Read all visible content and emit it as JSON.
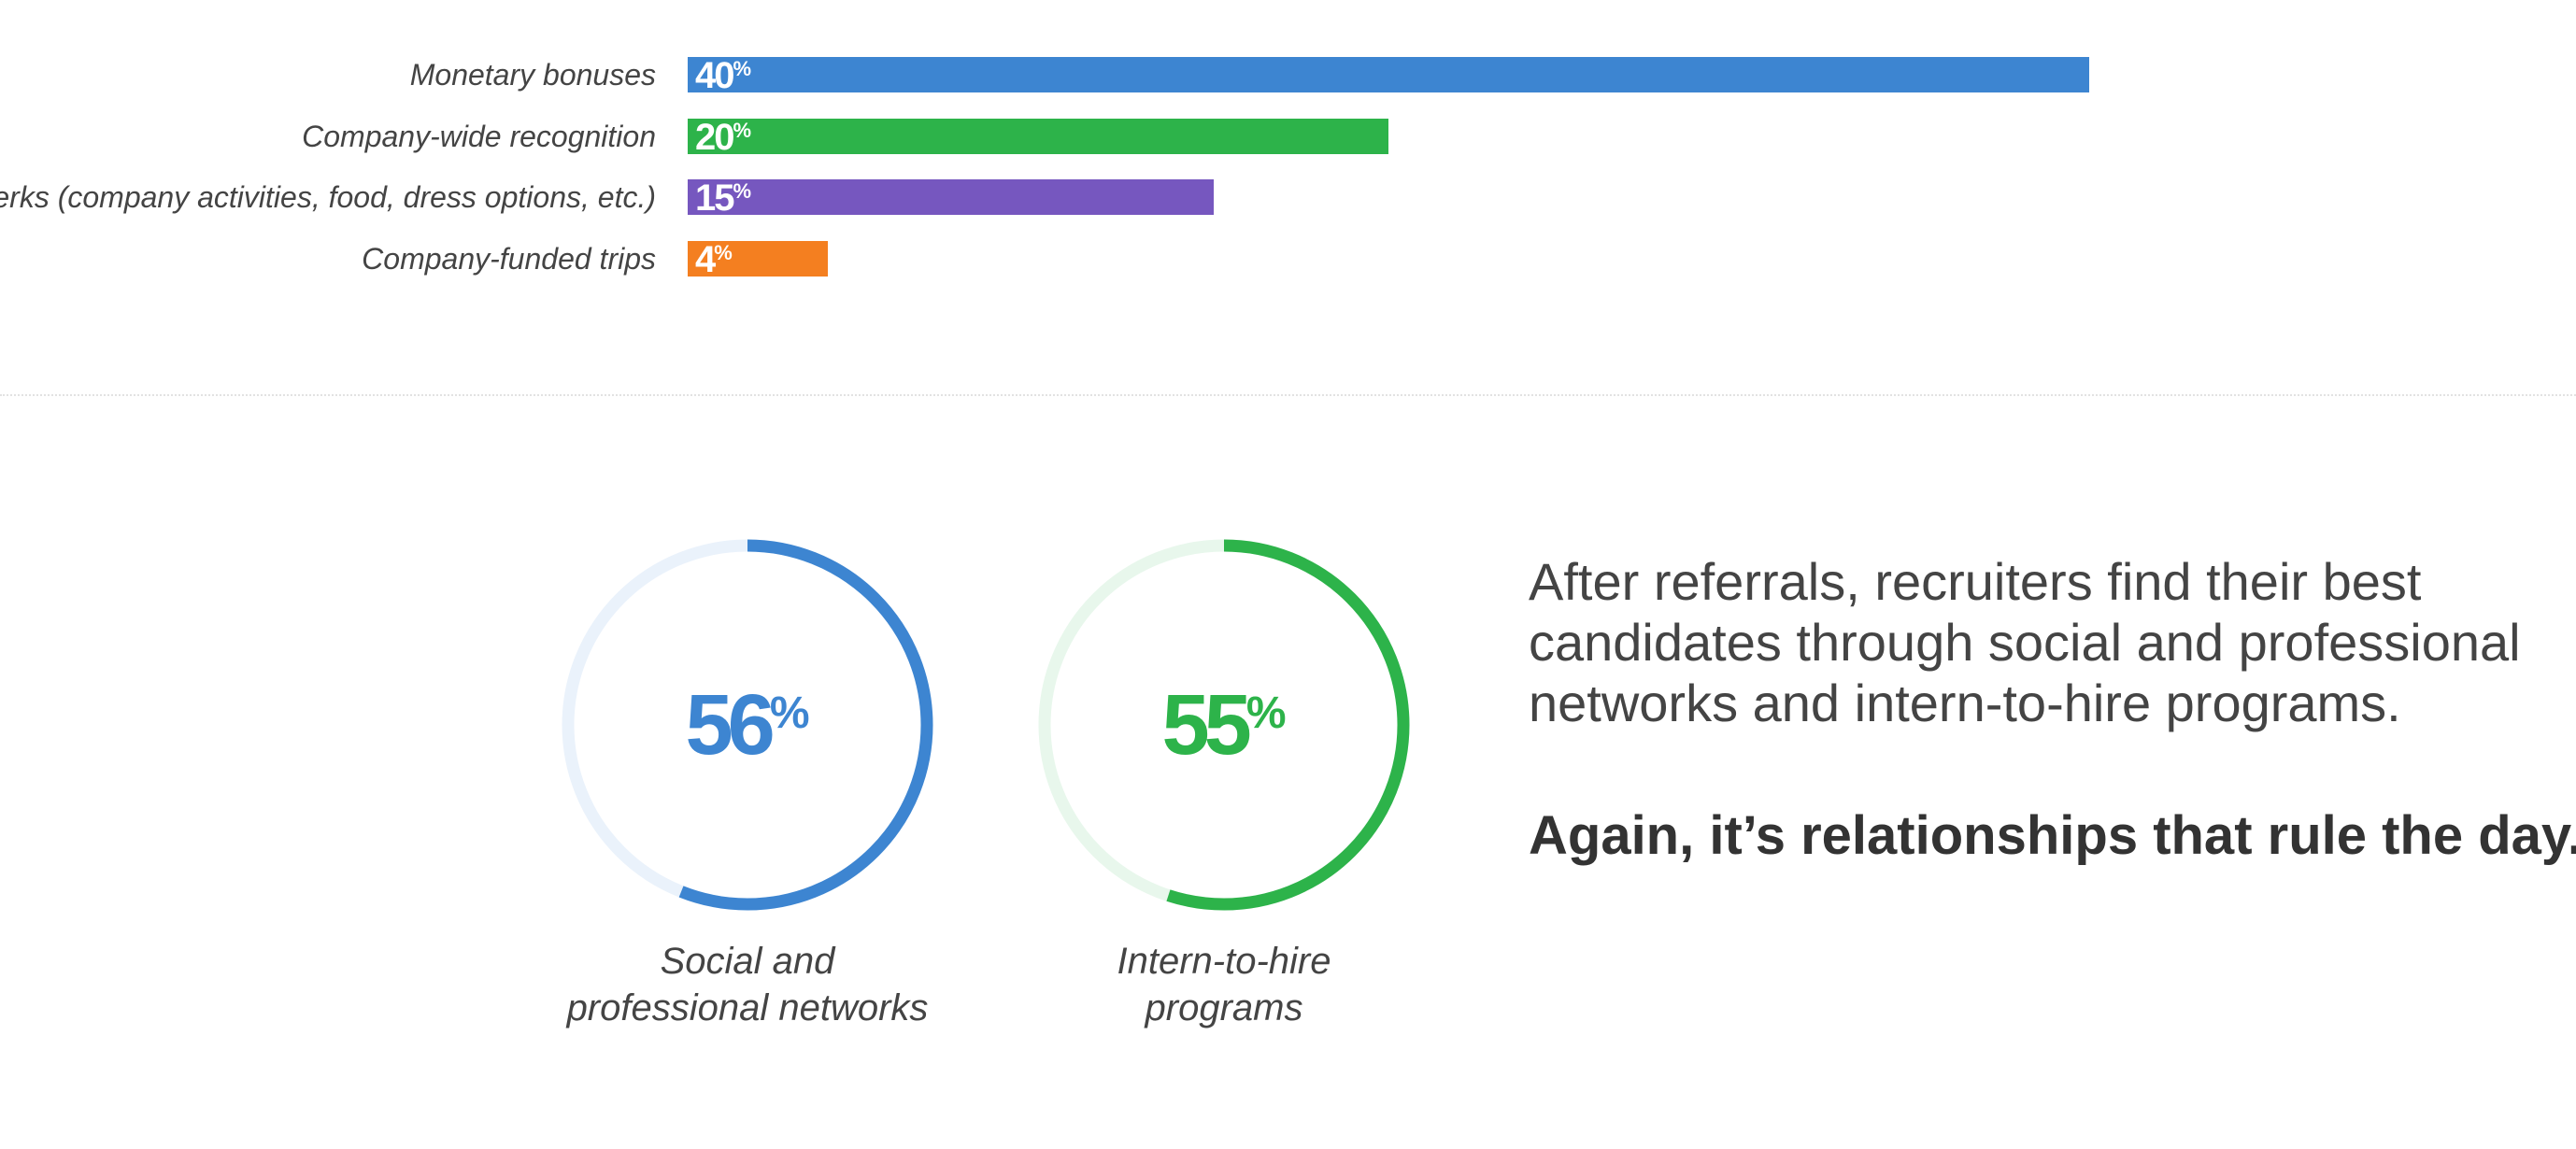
{
  "chart_data": [
    {
      "type": "bar",
      "orientation": "horizontal",
      "categories": [
        "Monetary bonuses",
        "Company-wide recognition",
        "Perks (company activities, food, dress options, etc.)",
        "Company-funded trips"
      ],
      "values": [
        40,
        20,
        15,
        4
      ],
      "value_labels": [
        "40",
        "20",
        "15",
        "4"
      ],
      "unit": "%",
      "colors": [
        "#3d85d1",
        "#2db34a",
        "#7657bf",
        "#f47f20"
      ],
      "xlim": [
        0,
        100
      ],
      "grid": false,
      "legend": "none"
    },
    {
      "type": "pie",
      "style": "donut",
      "items": [
        {
          "value": 56,
          "value_label": "56",
          "unit": "%",
          "caption_lines": [
            "Social and",
            "professional networks"
          ],
          "color": "#3d85d1",
          "track_color": "#eaf2fb"
        },
        {
          "value": 55,
          "value_label": "55",
          "unit": "%",
          "caption_lines": [
            "Intern-to-hire",
            "programs"
          ],
          "color": "#2db34a",
          "track_color": "#e8f7ec"
        }
      ]
    }
  ],
  "text": {
    "headline": "After referrals, recruiters find their best candidates through social and professional networks and intern-to-hire programs.",
    "subhead": "Again, it’s relationships that rule the day."
  }
}
